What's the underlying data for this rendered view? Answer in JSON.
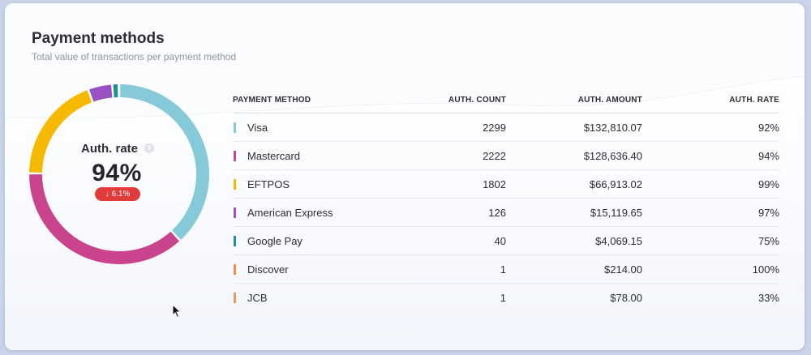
{
  "card": {
    "title": "Payment methods",
    "subtitle": "Total value of transactions per payment method"
  },
  "summary": {
    "label": "Auth. rate",
    "value": "94%",
    "change": "6.1%",
    "change_direction": "down",
    "change_color": "#e23b3b"
  },
  "table": {
    "headers": [
      "PAYMENT METHOD",
      "AUTH. COUNT",
      "AUTH. AMOUNT",
      "AUTH. RATE"
    ],
    "rows": [
      {
        "method": "Visa",
        "count": "2299",
        "amount": "$132,810.07",
        "rate": "92%",
        "color": "#86c9d8",
        "amount_value": 132810.07
      },
      {
        "method": "Mastercard",
        "count": "2222",
        "amount": "$128,636.40",
        "rate": "94%",
        "color": "#c9448d",
        "amount_value": 128636.4
      },
      {
        "method": "EFTPOS",
        "count": "1802",
        "amount": "$66,913.02",
        "rate": "99%",
        "color": "#f7b800",
        "amount_value": 66913.02
      },
      {
        "method": "American Express",
        "count": "126",
        "amount": "$15,119.65",
        "rate": "97%",
        "color": "#9a52c2",
        "amount_value": 15119.65
      },
      {
        "method": "Google Pay",
        "count": "40",
        "amount": "$4,069.15",
        "rate": "75%",
        "color": "#1e8f93",
        "amount_value": 4069.15
      },
      {
        "method": "Discover",
        "count": "1",
        "amount": "$214.00",
        "rate": "100%",
        "color": "#ef8f3f",
        "amount_value": 214.0
      },
      {
        "method": "JCB",
        "count": "1",
        "amount": "$78.00",
        "rate": "33%",
        "color": "#e8975a",
        "amount_value": 78.0
      }
    ]
  },
  "icons": {
    "help": "question-icon",
    "down": "arrow-down-icon",
    "cursor": "mouse-pointer-icon"
  }
}
